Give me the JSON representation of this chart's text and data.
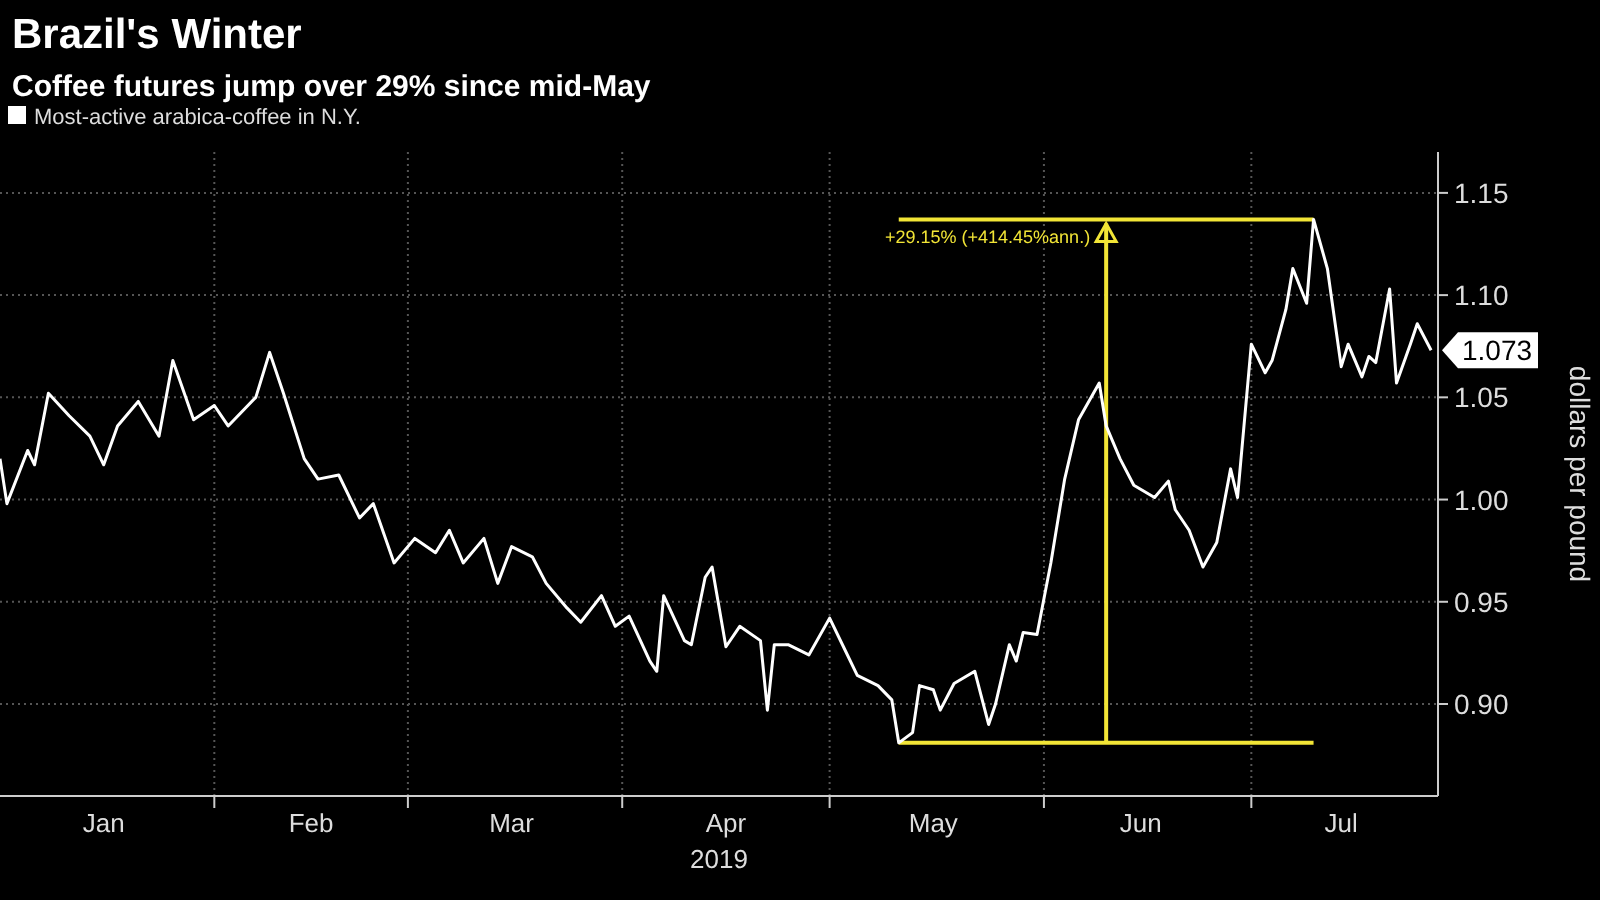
{
  "chart_data": {
    "type": "line",
    "title": "Brazil's Winter",
    "subtitle": "Coffee futures jump over 29% since mid-May",
    "xlabel": "2019",
    "ylabel": "dollars per pound",
    "legend": "top left",
    "grid": true,
    "xlim": [
      "2019-01-01",
      "2019-07-28"
    ],
    "ylim": [
      0.855,
      1.17
    ],
    "yticks": [
      {
        "value": 0.9,
        "label": "0.90"
      },
      0.95,
      {
        "value": 1.0,
        "label": "1.00"
      },
      1.05,
      {
        "value": 1.1,
        "label": "1.10"
      },
      1.15
    ],
    "xticks": [
      {
        "value": "2019-01-16",
        "label": "Jan"
      },
      {
        "value": "2019-02-01",
        "label": null
      },
      {
        "value": "2019-02-15",
        "label": "Feb"
      },
      {
        "value": "2019-03-01",
        "label": null
      },
      {
        "value": "2019-03-16",
        "label": "Mar"
      },
      {
        "value": "2019-04-01",
        "label": null
      },
      {
        "value": "2019-04-16",
        "label": "Apr"
      },
      {
        "value": "2019-05-01",
        "label": null
      },
      {
        "value": "2019-05-16",
        "label": "May"
      },
      {
        "value": "2019-06-01",
        "label": null
      },
      {
        "value": "2019-06-15",
        "label": "Jun"
      },
      {
        "value": "2019-07-01",
        "label": null
      },
      {
        "value": "2019-07-14",
        "label": "Jul"
      }
    ],
    "annotations": [
      "+29.15% (+414.45%ann.)"
    ],
    "ref_lines": [
      {
        "axis": "x",
        "value": "2019-06-10",
        "color": "#f2e536"
      },
      {
        "axis": "y",
        "value": 0.881,
        "color": "#f2e536"
      },
      {
        "axis": "y",
        "value": 1.137,
        "color": "#f2e536"
      }
    ],
    "series": [
      {
        "name": "Most-active arabica-coffee in N.Y.",
        "color": "#ffffff",
        "x": [
          "2019-01-01",
          "2019-01-02",
          "2019-01-05",
          "2019-01-06",
          "2019-01-08",
          "2019-01-11",
          "2019-01-14",
          "2019-01-16",
          "2019-01-18",
          "2019-01-21",
          "2019-01-24",
          "2019-01-26",
          "2019-01-29",
          "2019-02-01",
          "2019-02-03",
          "2019-02-07",
          "2019-02-09",
          "2019-02-11",
          "2019-02-14",
          "2019-02-16",
          "2019-02-19",
          "2019-02-22",
          "2019-02-24",
          "2019-02-27",
          "2019-03-02",
          "2019-03-05",
          "2019-03-07",
          "2019-03-09",
          "2019-03-12",
          "2019-03-14",
          "2019-03-16",
          "2019-03-19",
          "2019-03-21",
          "2019-03-24",
          "2019-03-26",
          "2019-03-29",
          "2019-03-31",
          "2019-04-02",
          "2019-04-05",
          "2019-04-06",
          "2019-04-07",
          "2019-04-10",
          "2019-04-11",
          "2019-04-13",
          "2019-04-14",
          "2019-04-16",
          "2019-04-18",
          "2019-04-21",
          "2019-04-22",
          "2019-04-23",
          "2019-04-25",
          "2019-04-28",
          "2019-05-01",
          "2019-05-03",
          "2019-05-05",
          "2019-05-08",
          "2019-05-10",
          "2019-05-11",
          "2019-05-13",
          "2019-05-14",
          "2019-05-16",
          "2019-05-17",
          "2019-05-19",
          "2019-05-22",
          "2019-05-24",
          "2019-05-25",
          "2019-05-27",
          "2019-05-28",
          "2019-05-29",
          "2019-05-31",
          "2019-06-02",
          "2019-06-04",
          "2019-06-06",
          "2019-06-09",
          "2019-06-10",
          "2019-06-12",
          "2019-06-14",
          "2019-06-17",
          "2019-06-19",
          "2019-06-20",
          "2019-06-22",
          "2019-06-24",
          "2019-06-26",
          "2019-06-28",
          "2019-06-29",
          "2019-07-01",
          "2019-07-03",
          "2019-07-04",
          "2019-07-06",
          "2019-07-07",
          "2019-07-09",
          "2019-07-10",
          "2019-07-12",
          "2019-07-14",
          "2019-07-15",
          "2019-07-17",
          "2019-07-18",
          "2019-07-19",
          "2019-07-21",
          "2019-07-22",
          "2019-07-24",
          "2019-07-25",
          "2019-07-27"
        ],
        "values": [
          1.02,
          0.998,
          1.024,
          1.017,
          1.052,
          1.041,
          1.031,
          1.017,
          1.036,
          1.048,
          1.031,
          1.068,
          1.039,
          1.046,
          1.036,
          1.05,
          1.072,
          1.052,
          1.02,
          1.01,
          1.012,
          0.991,
          0.998,
          0.969,
          0.981,
          0.974,
          0.985,
          0.969,
          0.981,
          0.959,
          0.977,
          0.972,
          0.959,
          0.947,
          0.94,
          0.953,
          0.938,
          0.943,
          0.921,
          0.916,
          0.953,
          0.931,
          0.929,
          0.962,
          0.967,
          0.928,
          0.938,
          0.931,
          0.897,
          0.929,
          0.929,
          0.924,
          0.942,
          0.928,
          0.914,
          0.909,
          0.902,
          0.881,
          0.886,
          0.909,
          0.907,
          0.897,
          0.91,
          0.916,
          0.89,
          0.9,
          0.929,
          0.921,
          0.935,
          0.934,
          0.969,
          1.01,
          1.039,
          1.057,
          1.036,
          1.02,
          1.007,
          1.001,
          1.009,
          0.995,
          0.985,
          0.967,
          0.979,
          1.015,
          1.001,
          1.076,
          1.062,
          1.068,
          1.093,
          1.113,
          1.096,
          1.137,
          1.113,
          1.065,
          1.076,
          1.06,
          1.07,
          1.067,
          1.103,
          1.057,
          1.076,
          1.086,
          1.073
        ],
        "value_labels": [
          null,
          null,
          null,
          null,
          null,
          null,
          null,
          null,
          null,
          null,
          null,
          null,
          null,
          null,
          null,
          null,
          null,
          null,
          null,
          null,
          null,
          null,
          null,
          null,
          null,
          null,
          null,
          null,
          null,
          null,
          null,
          null,
          null,
          null,
          null,
          null,
          null,
          null,
          null,
          null,
          null,
          null,
          null,
          null,
          null,
          null,
          null,
          null,
          null,
          null,
          null,
          null,
          null,
          null,
          null,
          null,
          null,
          null,
          null,
          null,
          null,
          null,
          null,
          null,
          null,
          null,
          null,
          null,
          null,
          null,
          null,
          null,
          null,
          null,
          null,
          null,
          null,
          null,
          null,
          null,
          null,
          null,
          null,
          null,
          null,
          null,
          null,
          null,
          null,
          null,
          null,
          null,
          null,
          null,
          null,
          null,
          null,
          null,
          null,
          null,
          null,
          null,
          "1.073"
        ]
      }
    ]
  }
}
